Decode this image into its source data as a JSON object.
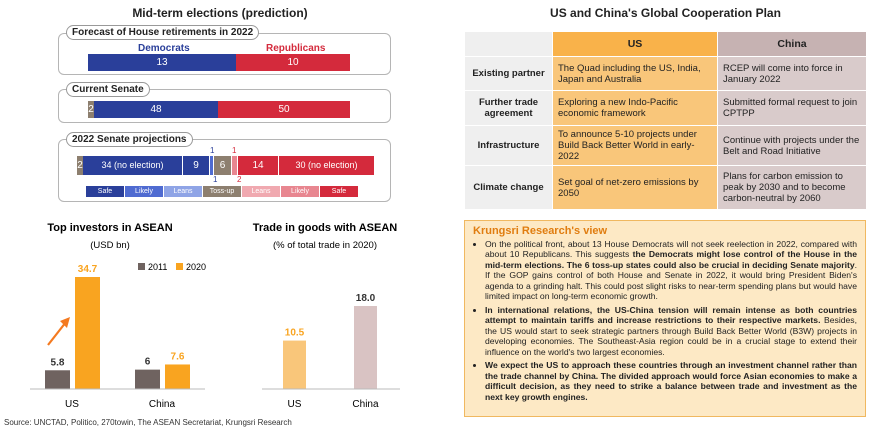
{
  "left_title": "Mid-term elections (prediction)",
  "right_title": "US and China's Global Cooperation Plan",
  "house": {
    "label": "Forecast of House retirements in 2022",
    "dem_label": "Democrats",
    "rep_label": "Republicans",
    "dem": "13",
    "rep": "10"
  },
  "senate": {
    "label": "Current Senate",
    "ind": "2",
    "dem": "48",
    "rep": "50"
  },
  "proj": {
    "label": "2022 Senate projections",
    "ind": "2",
    "dem_safe": "34 (no election)",
    "dem_likely": "9",
    "dem_lean_top": "1",
    "dem_lean_bottom": "1",
    "tossup": "6",
    "rep_lean_top": "1",
    "rep_lean_bottom": "2",
    "rep_likely": "14",
    "rep_safe": "30 (no election)",
    "legend": [
      "Safe",
      "Likely",
      "Leans",
      "Toss-up",
      "Leans",
      "Likely",
      "Safe"
    ]
  },
  "table": {
    "headers": [
      "",
      "US",
      "China"
    ],
    "rows": [
      {
        "head": "Existing partner",
        "us": "The Quad including the US, India, Japan and Australia",
        "cn": "RCEP will come into force in January 2022"
      },
      {
        "head": "Further trade agreement",
        "us": "Exploring a new Indo-Pacific economic framework",
        "cn": "Submitted formal request to join CPTPP"
      },
      {
        "head": "Infrastructure",
        "us": "To announce 5-10 projects under Build Back Better World in early-2022",
        "cn": "Continue with projects under the Belt and Road Initiative"
      },
      {
        "head": "Climate change",
        "us": "Set goal of net-zero emissions by 2050",
        "cn": "Plans for carbon emission to peak by 2030 and to become carbon-neutral by 2060"
      }
    ]
  },
  "view": {
    "title": "Krungsri Research's view",
    "p1a": "On the political front, about 13 House Democrats will not seek reelection in 2022, compared with about 10 Republicans. This suggests ",
    "p1b": "the Democrats might lose control of the House in the mid-term elections. The 6 toss-up states could also be crucial in deciding Senate majority",
    "p1c": ". If the GOP gains control of both House and Senate in 2022, it would bring President Biden's agenda to a grinding halt. This could post slight risks to near-term spending plans but would have limited impact on long-term economic growth.",
    "p2a": "In international relations, the US-China tension will remain intense as both countries attempt to maintain tariffs and increase restrictions to their respective markets.",
    "p2b": " Besides, the US would start to seek strategic partners through Build Back Better World (B3W) projects in developing economies. The Southeast-Asia region could be in a crucial stage to extend their influence on the world's two largest economies.",
    "p3": "We expect the US to approach these countries through an investment channel rather than the trade channel by China. The divided approach would force Asian economies to make a difficult decision, as they need to strike a balance between trade and investment as the next key growth engines."
  },
  "source": "Source: UNCTAD, Politico, 270towin, The ASEAN Secretariat, Krungsri Research",
  "chart_data": [
    {
      "type": "bar",
      "title": "Top investors in ASEAN",
      "subtitle": "(USD bn)",
      "categories": [
        "US",
        "China"
      ],
      "series": [
        {
          "name": "2011",
          "values": [
            5.8,
            6.0
          ],
          "color": "#6f6360"
        },
        {
          "name": "2020",
          "values": [
            34.7,
            7.6
          ],
          "color": "#f9a420"
        }
      ],
      "ylim": [
        0,
        40
      ],
      "legend": "top-right"
    },
    {
      "type": "bar",
      "title": "Trade in goods with ASEAN",
      "subtitle": "(% of total trade in 2020)",
      "categories": [
        "US",
        "China"
      ],
      "values": [
        10.5,
        18.0
      ],
      "colors": [
        "#f9c67a",
        "#d9c3c3"
      ],
      "ylim": [
        0,
        25
      ]
    }
  ]
}
